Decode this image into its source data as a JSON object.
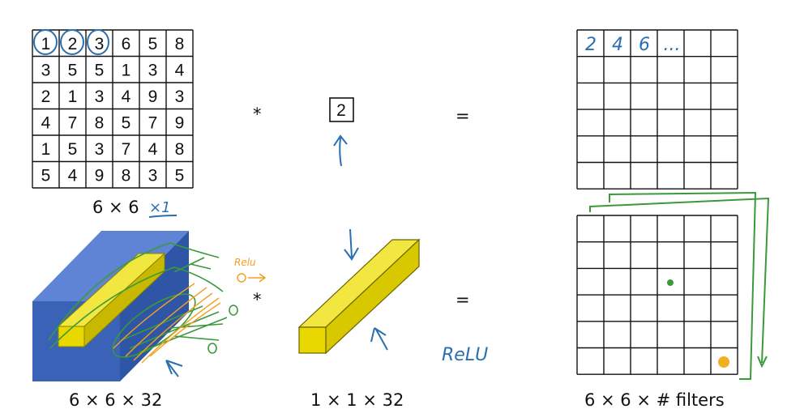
{
  "top": {
    "input_matrix": [
      [
        "1",
        "2",
        "3",
        "6",
        "5",
        "8"
      ],
      [
        "3",
        "5",
        "5",
        "1",
        "3",
        "4"
      ],
      [
        "2",
        "1",
        "3",
        "4",
        "9",
        "3"
      ],
      [
        "4",
        "7",
        "8",
        "5",
        "7",
        "9"
      ],
      [
        "1",
        "5",
        "3",
        "7",
        "4",
        "8"
      ],
      [
        "5",
        "4",
        "9",
        "8",
        "3",
        "5"
      ]
    ],
    "input_label": "6 × 6",
    "input_note": "×1",
    "operator": "*",
    "filter_value": "2",
    "equals": "=",
    "output_first_row": [
      "2",
      "4",
      "6",
      "..."
    ]
  },
  "bottom": {
    "input_label": "6 × 6 × 32",
    "relu_note_small": "Relu",
    "operator": "*",
    "filter_label": "1 × 1 × 32",
    "relu_note": "ReLU",
    "equals": "=",
    "output_label": "6 × 6 × # filters"
  },
  "colors": {
    "blue_block": "#3a63b8",
    "yellow_filter": "#e8d800",
    "annotation_blue": "#2a6fb0",
    "annotation_green": "#3a9a3a",
    "annotation_orange": "#f0a020"
  }
}
